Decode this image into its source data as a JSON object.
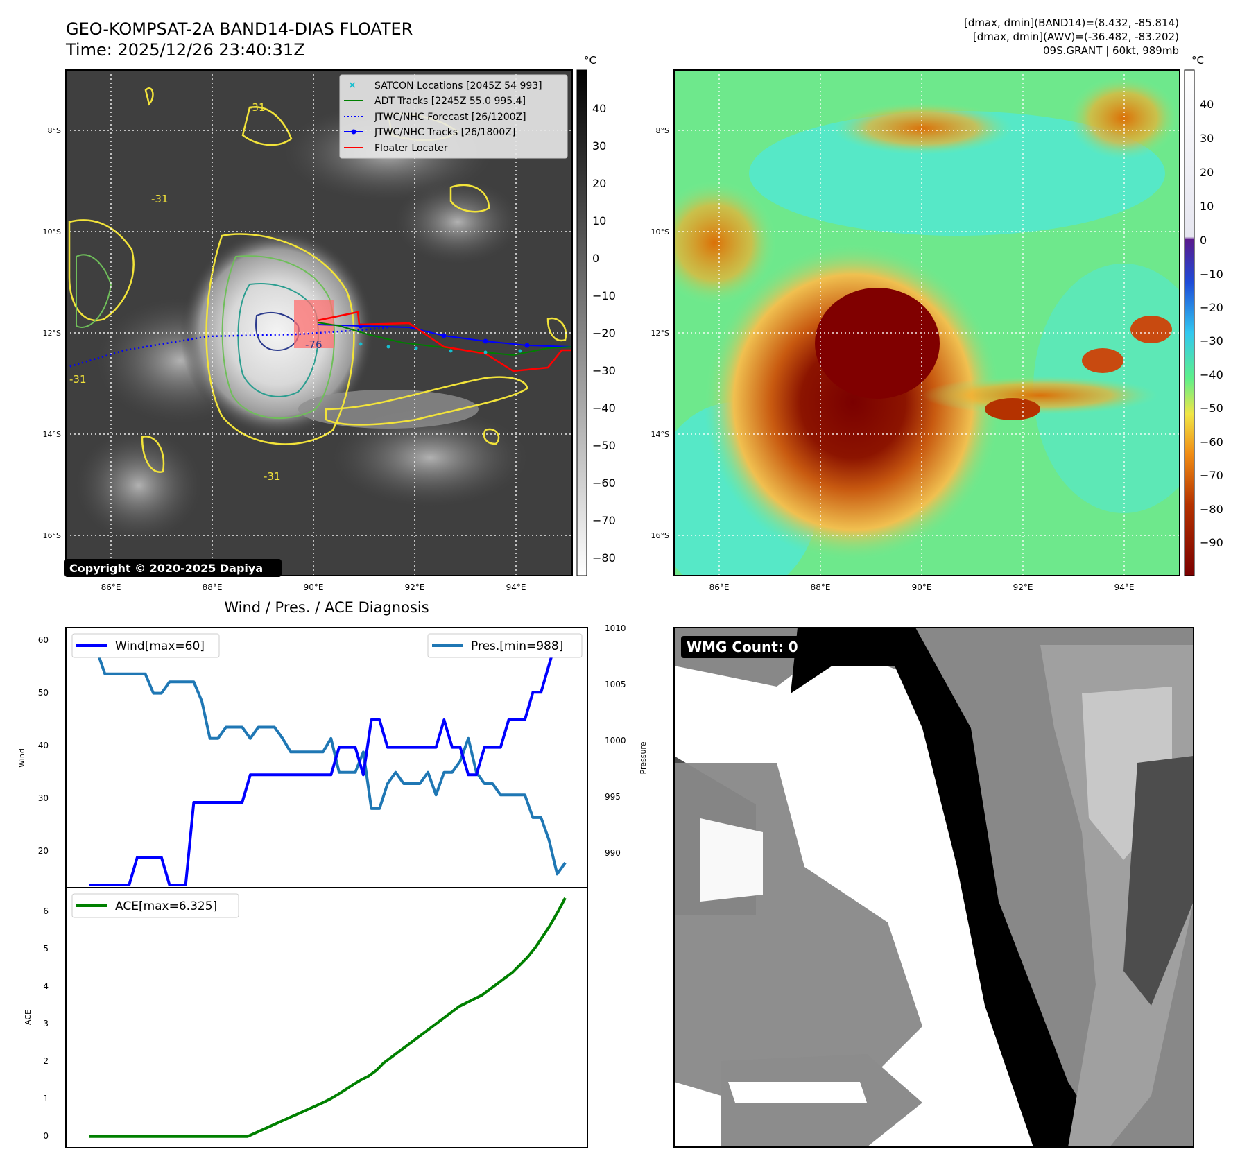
{
  "header": {
    "title": "GEO-KOMPSAT-2A BAND14-DIAS FLOATER",
    "time": "Time: 2025/12/26 23:40:31Z",
    "stats1": "[dmax, dmin](BAND14)=(8.432, -85.814)",
    "stats2": "[dmax, dmin](AWV)=(-36.482, -83.202)",
    "storm": "09S.GRANT | 60kt, 989mb"
  },
  "colors": {
    "wind": "#0000ff",
    "pressure": "#1f77b4",
    "ace": "#008000",
    "adt": "#008000",
    "satcon": "#17becf",
    "floater": "#ff0000",
    "contour_yellow": "#f2e33a",
    "contour_teal": "#2a9d8f",
    "contour_navy": "#2b3a8c"
  },
  "ir_panel": {
    "unit": "°C",
    "copyright": "Copyright © 2020-2025 Dapiya",
    "x_ticks": [
      "86°E",
      "88°E",
      "90°E",
      "92°E",
      "94°E"
    ],
    "y_ticks": [
      "8°S",
      "10°S",
      "12°S",
      "14°S",
      "16°S"
    ],
    "colorbar_ticks": [
      "40",
      "30",
      "20",
      "10",
      "0",
      "−10",
      "−20",
      "−30",
      "−40",
      "−50",
      "−60",
      "−70",
      "−80"
    ],
    "contour_labels": [
      "-31",
      "-31",
      "-31",
      "-76",
      "-31"
    ],
    "legend": [
      {
        "label": "SATCON Locations [2045Z 54 993]",
        "icon": "x-marker"
      },
      {
        "label": "ADT Tracks [2245Z 55.0 995.4]",
        "icon": "solid-line"
      },
      {
        "label": "JTWC/NHC Forecast [26/1200Z]",
        "icon": "dotted-line"
      },
      {
        "label": "JTWC/NHC Tracks [26/1800Z]",
        "icon": "line-dot"
      },
      {
        "label": "Floater Locater",
        "icon": "solid-line"
      }
    ]
  },
  "color_panel": {
    "unit": "°C",
    "x_ticks": [
      "86°E",
      "88°E",
      "90°E",
      "92°E",
      "94°E"
    ],
    "y_ticks": [
      "8°S",
      "10°S",
      "12°S",
      "14°S",
      "16°S"
    ],
    "colorbar_ticks": [
      "40",
      "30",
      "20",
      "10",
      "0",
      "−10",
      "−20",
      "−30",
      "−40",
      "−50",
      "−60",
      "−70",
      "−80",
      "−90"
    ]
  },
  "wind_panel": {
    "title": "Wind / Pres. / ACE Diagnosis",
    "wind_legend": "Wind[max=60]",
    "pres_legend": "Pres.[min=988]",
    "ylabel_left": "Wind",
    "ylabel_right": "Pressure",
    "left_ticks": [
      "60",
      "50",
      "40",
      "30",
      "20"
    ],
    "right_ticks": [
      "1010",
      "1005",
      "1000",
      "995",
      "990"
    ]
  },
  "ace_panel": {
    "legend": "ACE[max=6.325]",
    "ylabel": "ACE",
    "ticks": [
      "6",
      "5",
      "4",
      "3",
      "2",
      "1",
      "0"
    ]
  },
  "wmg_panel": {
    "label": "WMG Count: 0"
  },
  "chart_data": [
    {
      "type": "line",
      "name": "wind-pressure",
      "series": [
        {
          "name": "Wind[max=60]",
          "axis": "left",
          "values": [
            15,
            15,
            15,
            15,
            15,
            15,
            20,
            20,
            20,
            20,
            15,
            15,
            15,
            30,
            30,
            30,
            30,
            30,
            30,
            30,
            35,
            35,
            35,
            35,
            35,
            35,
            35,
            35,
            35,
            35,
            35,
            40,
            40,
            40,
            35,
            45,
            45,
            40,
            40,
            40,
            40,
            40,
            40,
            40,
            45,
            40,
            40,
            35,
            35,
            40,
            40,
            40,
            45,
            45,
            45,
            50,
            50,
            55,
            60,
            60
          ]
        },
        {
          "name": "Pres.[min=988]",
          "axis": "right",
          "values": [
            1008.0,
            1008.0,
            1005.9,
            1005.9,
            1005.9,
            1005.9,
            1005.9,
            1005.9,
            1004.2,
            1004.2,
            1005.2,
            1005.2,
            1005.2,
            1005.2,
            1003.5,
            1000.2,
            1000.2,
            1001.2,
            1001.2,
            1001.2,
            1000.2,
            1001.2,
            1001.2,
            1001.2,
            1000.2,
            999.0,
            999.0,
            999.0,
            999.0,
            999.0,
            1000.2,
            997.2,
            997.2,
            997.2,
            999.0,
            994.0,
            994.0,
            996.2,
            997.2,
            996.2,
            996.2,
            996.2,
            997.2,
            995.2,
            997.2,
            997.2,
            998.2,
            1000.2,
            997.2,
            996.2,
            996.2,
            995.2,
            995.2,
            995.2,
            995.2,
            993.2,
            993.2,
            991.2,
            988.2,
            989.2
          ]
        }
      ],
      "ylim_left": [
        15,
        61
      ],
      "ylim_right": [
        987,
        1010
      ],
      "ylabel": "Wind",
      "ylabel_right": "Pressure"
    },
    {
      "type": "line",
      "name": "ace",
      "series": [
        {
          "name": "ACE[max=6.325]",
          "values": [
            0,
            0,
            0,
            0,
            0,
            0,
            0,
            0,
            0,
            0,
            0,
            0,
            0,
            0,
            0,
            0,
            0,
            0,
            0,
            0,
            0,
            0,
            0.09,
            0.18,
            0.27,
            0.36,
            0.45,
            0.54,
            0.63,
            0.72,
            0.81,
            0.9,
            1.0,
            1.12,
            1.25,
            1.38,
            1.5,
            1.6,
            1.75,
            1.95,
            2.1,
            2.25,
            2.4,
            2.55,
            2.7,
            2.85,
            3.0,
            3.15,
            3.3,
            3.45,
            3.55,
            3.65,
            3.75,
            3.9,
            4.05,
            4.2,
            4.35,
            4.55,
            4.75,
            5.0,
            5.3,
            5.6,
            5.95,
            6.325
          ]
        }
      ],
      "ylim": [
        -0.3,
        6.6
      ],
      "ylabel": "ACE"
    }
  ]
}
